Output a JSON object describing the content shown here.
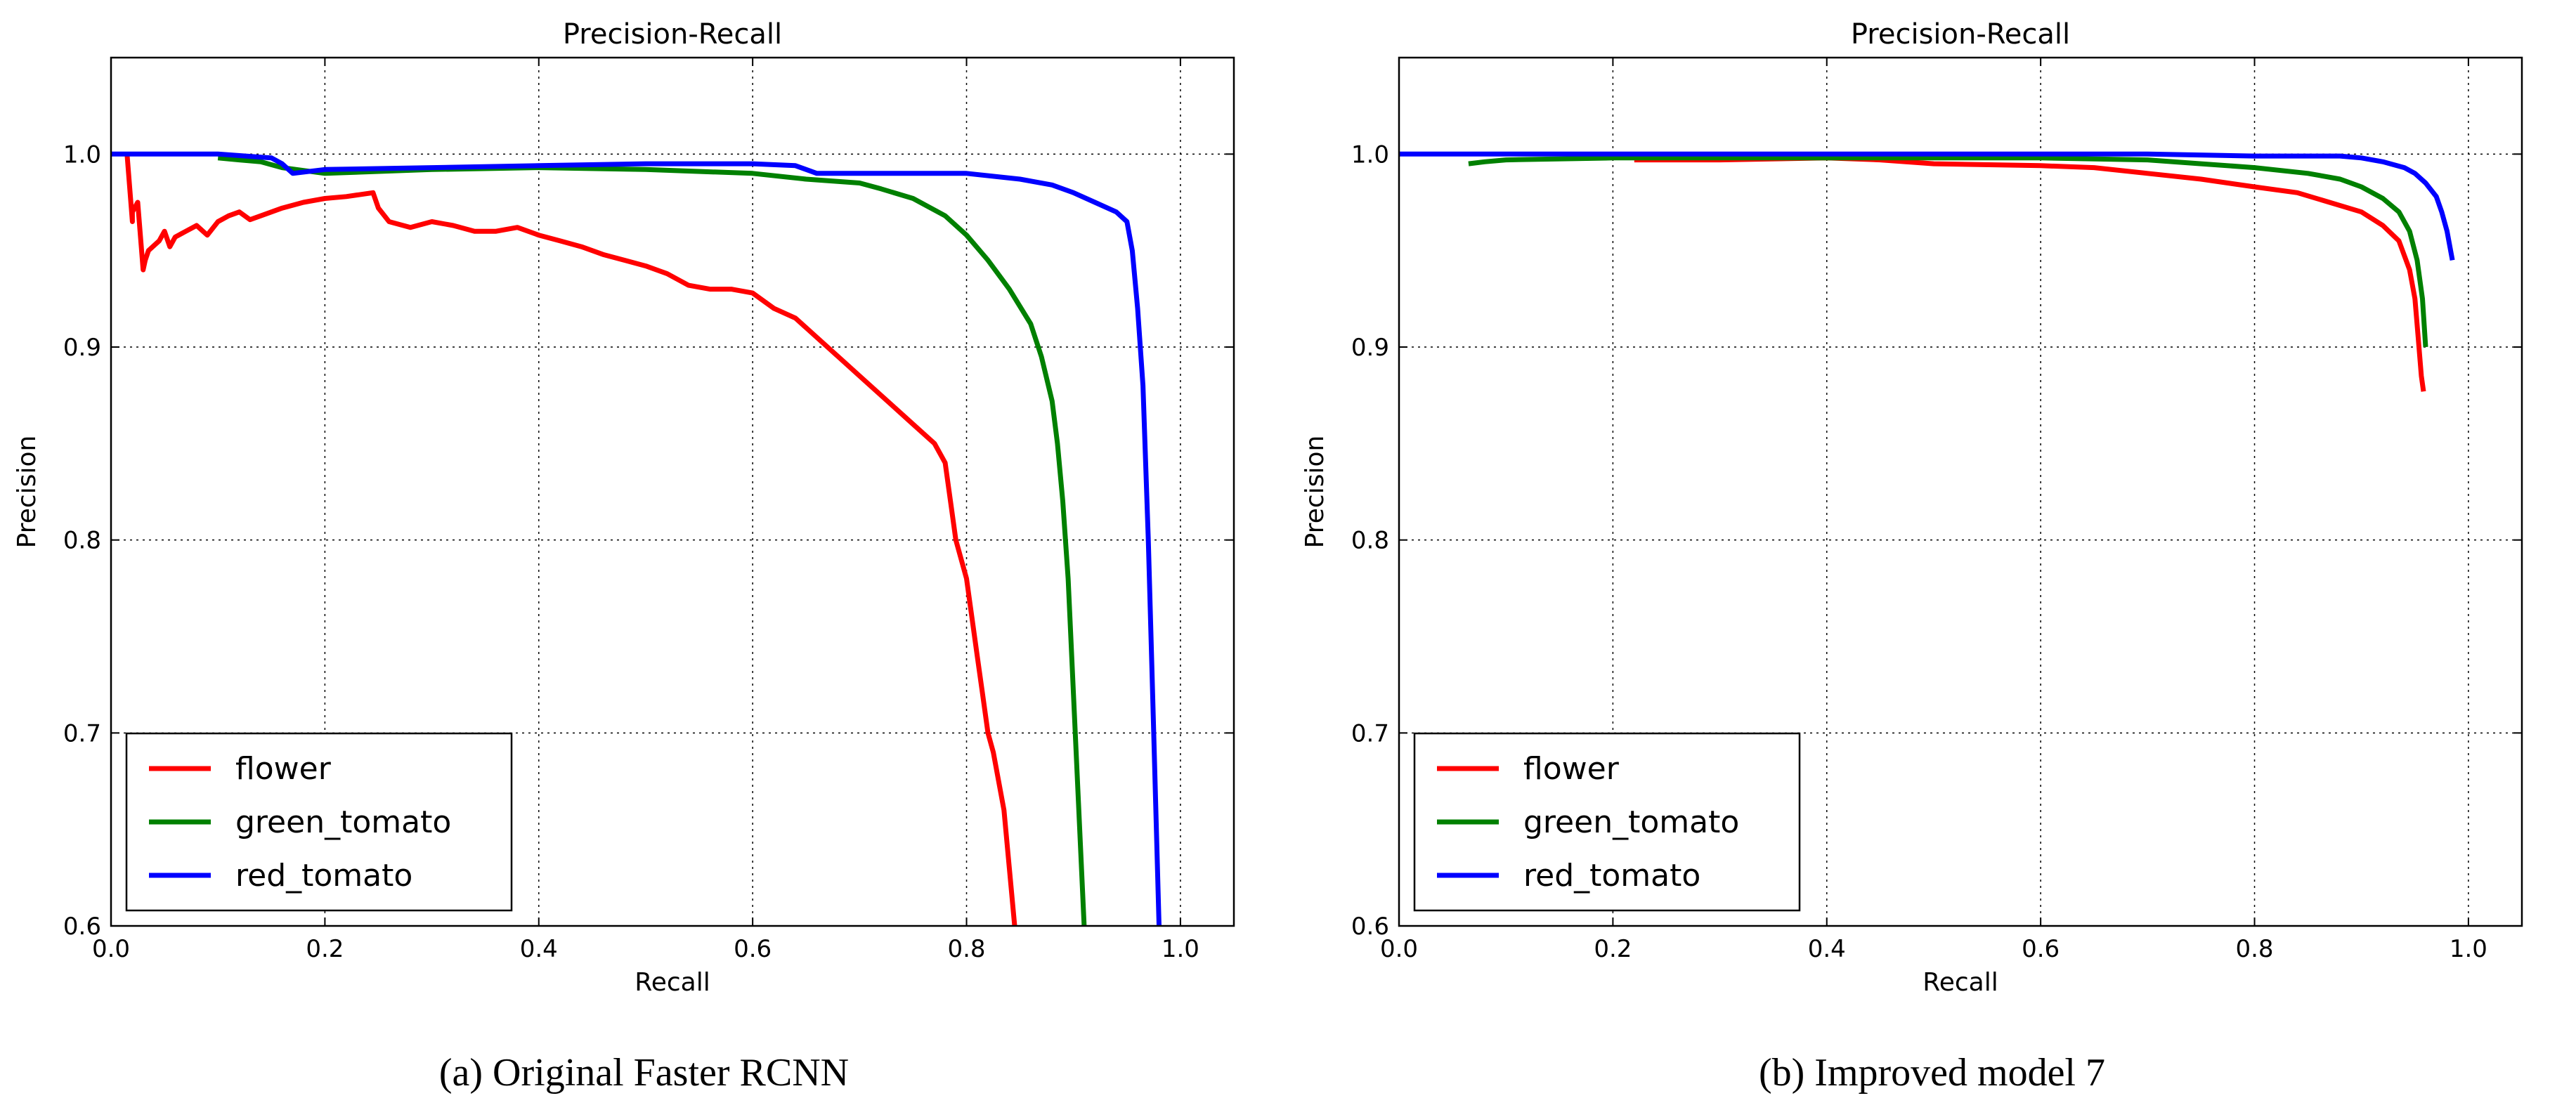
{
  "chart_data": [
    {
      "type": "line",
      "title": "Precision-Recall",
      "xlabel": "Recall",
      "ylabel": "Precision",
      "xlim": [
        0.0,
        1.05
      ],
      "ylim": [
        0.6,
        1.05
      ],
      "xticks": [
        "0.0",
        "0.2",
        "0.4",
        "0.6",
        "0.8",
        "1.0"
      ],
      "yticks": [
        "0.6",
        "0.7",
        "0.8",
        "0.9",
        "1.0"
      ],
      "grid": true,
      "legend_position": "lower-left",
      "caption": "(a) Original Faster RCNN",
      "series": [
        {
          "name": "flower",
          "color": "#ff0000",
          "x": [
            0.015,
            0.02,
            0.02,
            0.025,
            0.03,
            0.032,
            0.035,
            0.045,
            0.05,
            0.055,
            0.06,
            0.07,
            0.08,
            0.09,
            0.1,
            0.11,
            0.12,
            0.13,
            0.14,
            0.16,
            0.18,
            0.2,
            0.22,
            0.245,
            0.25,
            0.26,
            0.28,
            0.3,
            0.32,
            0.34,
            0.36,
            0.38,
            0.4,
            0.42,
            0.44,
            0.46,
            0.48,
            0.5,
            0.52,
            0.54,
            0.56,
            0.58,
            0.6,
            0.62,
            0.64,
            0.66,
            0.68,
            0.7,
            0.72,
            0.74,
            0.75,
            0.77,
            0.78,
            0.785,
            0.79,
            0.8,
            0.805,
            0.81,
            0.815,
            0.82,
            0.825,
            0.83,
            0.835,
            0.84,
            0.845
          ],
          "y": [
            1.0,
            0.965,
            0.97,
            0.975,
            0.94,
            0.945,
            0.95,
            0.955,
            0.96,
            0.952,
            0.957,
            0.96,
            0.963,
            0.958,
            0.965,
            0.968,
            0.97,
            0.966,
            0.968,
            0.972,
            0.975,
            0.977,
            0.978,
            0.98,
            0.972,
            0.965,
            0.962,
            0.965,
            0.963,
            0.96,
            0.96,
            0.962,
            0.958,
            0.955,
            0.952,
            0.948,
            0.945,
            0.942,
            0.938,
            0.932,
            0.93,
            0.93,
            0.928,
            0.92,
            0.915,
            0.905,
            0.895,
            0.885,
            0.875,
            0.865,
            0.86,
            0.85,
            0.84,
            0.82,
            0.8,
            0.78,
            0.76,
            0.74,
            0.72,
            0.7,
            0.69,
            0.675,
            0.66,
            0.63,
            0.6
          ]
        },
        {
          "name": "green_tomato",
          "color": "#008000",
          "x": [
            0.1,
            0.12,
            0.14,
            0.16,
            0.2,
            0.3,
            0.4,
            0.5,
            0.6,
            0.65,
            0.7,
            0.72,
            0.75,
            0.78,
            0.8,
            0.82,
            0.84,
            0.86,
            0.87,
            0.88,
            0.885,
            0.89,
            0.895,
            0.9,
            0.905,
            0.91
          ],
          "y": [
            0.998,
            0.997,
            0.996,
            0.993,
            0.99,
            0.992,
            0.993,
            0.992,
            0.99,
            0.987,
            0.985,
            0.982,
            0.977,
            0.968,
            0.958,
            0.945,
            0.93,
            0.912,
            0.895,
            0.872,
            0.85,
            0.82,
            0.78,
            0.72,
            0.66,
            0.6
          ]
        },
        {
          "name": "red_tomato",
          "color": "#0000ff",
          "x": [
            0.0,
            0.05,
            0.1,
            0.15,
            0.16,
            0.17,
            0.2,
            0.3,
            0.4,
            0.5,
            0.6,
            0.64,
            0.66,
            0.7,
            0.8,
            0.85,
            0.88,
            0.9,
            0.92,
            0.94,
            0.95,
            0.955,
            0.96,
            0.965,
            0.97,
            0.975,
            0.98
          ],
          "y": [
            1.0,
            1.0,
            1.0,
            0.998,
            0.995,
            0.99,
            0.992,
            0.993,
            0.994,
            0.995,
            0.995,
            0.994,
            0.99,
            0.99,
            0.99,
            0.987,
            0.984,
            0.98,
            0.975,
            0.97,
            0.965,
            0.95,
            0.92,
            0.88,
            0.8,
            0.7,
            0.6
          ]
        }
      ]
    },
    {
      "type": "line",
      "title": "Precision-Recall",
      "xlabel": "Recall",
      "ylabel": "Precision",
      "xlim": [
        0.0,
        1.05
      ],
      "ylim": [
        0.6,
        1.05
      ],
      "xticks": [
        "0.0",
        "0.2",
        "0.4",
        "0.6",
        "0.8",
        "1.0"
      ],
      "yticks": [
        "0.6",
        "0.7",
        "0.8",
        "0.9",
        "1.0"
      ],
      "grid": true,
      "legend_position": "lower-left",
      "caption": "(b) Improved model 7",
      "series": [
        {
          "name": "flower",
          "color": "#ff0000",
          "x": [
            0.22,
            0.3,
            0.4,
            0.45,
            0.5,
            0.6,
            0.65,
            0.7,
            0.75,
            0.8,
            0.84,
            0.87,
            0.9,
            0.92,
            0.935,
            0.945,
            0.95,
            0.953,
            0.956,
            0.958
          ],
          "y": [
            0.997,
            0.997,
            0.998,
            0.997,
            0.995,
            0.994,
            0.993,
            0.99,
            0.987,
            0.983,
            0.98,
            0.975,
            0.97,
            0.963,
            0.955,
            0.94,
            0.925,
            0.905,
            0.885,
            0.877
          ]
        },
        {
          "name": "green_tomato",
          "color": "#008000",
          "x": [
            0.065,
            0.08,
            0.1,
            0.2,
            0.3,
            0.4,
            0.5,
            0.6,
            0.7,
            0.75,
            0.8,
            0.85,
            0.88,
            0.9,
            0.92,
            0.935,
            0.945,
            0.952,
            0.957,
            0.96
          ],
          "y": [
            0.995,
            0.996,
            0.997,
            0.998,
            0.998,
            0.998,
            0.998,
            0.998,
            0.997,
            0.995,
            0.993,
            0.99,
            0.987,
            0.983,
            0.977,
            0.97,
            0.96,
            0.945,
            0.925,
            0.9
          ]
        },
        {
          "name": "red_tomato",
          "color": "#0000ff",
          "x": [
            0.0,
            0.1,
            0.2,
            0.3,
            0.4,
            0.5,
            0.6,
            0.7,
            0.8,
            0.85,
            0.88,
            0.9,
            0.92,
            0.94,
            0.95,
            0.96,
            0.97,
            0.975,
            0.98,
            0.985
          ],
          "y": [
            1.0,
            1.0,
            1.0,
            1.0,
            1.0,
            1.0,
            1.0,
            1.0,
            0.999,
            0.999,
            0.999,
            0.998,
            0.996,
            0.993,
            0.99,
            0.985,
            0.978,
            0.97,
            0.96,
            0.945
          ]
        }
      ]
    }
  ]
}
